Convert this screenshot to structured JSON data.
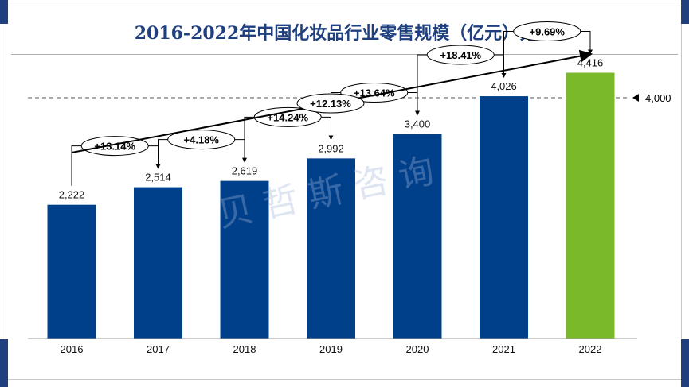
{
  "title": "2016-2022年中国化妆品行业零售规模（亿元）分析",
  "watermark": "贝哲斯咨询",
  "colors": {
    "bar": "#00408a",
    "highlight": "#7aba2a",
    "accent": "#1f3f7f"
  },
  "chart_data": {
    "type": "bar",
    "categories": [
      "2016",
      "2017",
      "2018",
      "2019",
      "2020",
      "2021",
      "2022"
    ],
    "values": [
      2222,
      2514,
      2619,
      2992,
      3400,
      4026,
      4416
    ],
    "value_labels": [
      "2,222",
      "2,514",
      "2,619",
      "2,992",
      "3,400",
      "4,026",
      "4,416"
    ],
    "highlight_index": 6,
    "growth_labels": [
      "+13.14%",
      "+4.18%",
      "+14.24%",
      "+13.64%",
      "+18.41%",
      "+9.69%"
    ],
    "cagr_label": "+12.13%",
    "reference_line": {
      "value": 4000,
      "label": "4,000"
    },
    "ylim": [
      0,
      4700
    ],
    "grid": false,
    "legend": "none"
  }
}
